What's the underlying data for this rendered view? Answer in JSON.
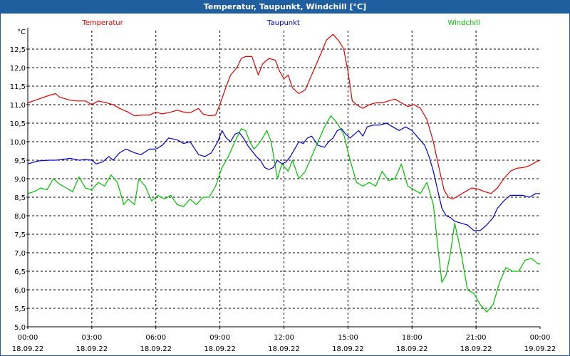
{
  "chart_data": {
    "type": "line",
    "title": "Temperatur, Taupunkt, Windchill [°C]",
    "unit_label": "°C",
    "x_start_hours": 0,
    "x_end_hours": 24,
    "x_tick_hours": [
      0,
      3,
      6,
      9,
      12,
      15,
      18,
      21,
      24
    ],
    "x_tick_times": [
      "00:00",
      "03:00",
      "06:00",
      "09:00",
      "12:00",
      "15:00",
      "18:00",
      "21:00",
      "00:00"
    ],
    "x_tick_dates": [
      "18.09.22",
      "18.09.22",
      "18.09.22",
      "18.09.22",
      "18.09.22",
      "18.09.22",
      "18.09.22",
      "18.09.22",
      "19.09.22"
    ],
    "y_min": 5.0,
    "y_max": 13.0,
    "y_ticks": [
      5.0,
      5.5,
      6.0,
      6.5,
      7.0,
      7.5,
      8.0,
      8.5,
      9.0,
      9.5,
      10.0,
      10.5,
      11.0,
      11.5,
      12.0,
      12.5
    ],
    "y_tick_labels": [
      "5,0",
      "5,5",
      "6,0",
      "6,5",
      "7,0",
      "7,5",
      "8,0",
      "8,5",
      "9,0",
      "9,5",
      "10,0",
      "10,5",
      "11,0",
      "11,5",
      "12,0",
      "12,5"
    ],
    "grid": true,
    "series": [
      {
        "name": "Temperatur",
        "color": "#e00000",
        "x": [
          0,
          0.5,
          1,
          1.3,
          1.5,
          2,
          2.3,
          2.7,
          3,
          3.3,
          3.7,
          4,
          4.3,
          4.7,
          5,
          5.3,
          5.7,
          6,
          6.3,
          6.7,
          7,
          7.3,
          7.6,
          8,
          8.2,
          8.5,
          8.8,
          9,
          9.3,
          9.5,
          9.8,
          10,
          10.2,
          10.5,
          10.8,
          11,
          11.3,
          11.6,
          11.8,
          12,
          12.2,
          12.4,
          12.7,
          13,
          13.3,
          13.6,
          14,
          14.3,
          14.6,
          14.8,
          15,
          15.2,
          15.4,
          15.7,
          16,
          16.3,
          16.6,
          16.9,
          17.2,
          17.5,
          17.8,
          18.1,
          18.4,
          18.7,
          19,
          19.3,
          19.5,
          19.7,
          19.9,
          20.2,
          20.5,
          20.8,
          21.1,
          21.4,
          21.7,
          22,
          22.3,
          22.6,
          22.9,
          23.2,
          23.5,
          23.8,
          24
        ],
        "values": [
          11.05,
          11.15,
          11.25,
          11.3,
          11.2,
          11.12,
          11.1,
          11.1,
          11.0,
          11.1,
          11.05,
          11.0,
          10.9,
          10.8,
          10.7,
          10.72,
          10.72,
          10.8,
          10.75,
          10.8,
          10.85,
          10.8,
          10.78,
          10.9,
          10.75,
          10.7,
          10.72,
          11.0,
          11.5,
          11.8,
          12.0,
          12.25,
          12.3,
          12.3,
          11.8,
          12.1,
          12.25,
          12.2,
          11.9,
          11.7,
          11.8,
          11.45,
          11.3,
          11.4,
          11.8,
          12.2,
          12.75,
          12.9,
          12.7,
          12.5,
          11.9,
          11.1,
          11.0,
          10.9,
          11.0,
          11.05,
          11.05,
          11.1,
          11.15,
          11.05,
          10.95,
          11.0,
          10.9,
          10.6,
          10.0,
          9.2,
          8.7,
          8.5,
          8.45,
          8.55,
          8.65,
          8.75,
          8.72,
          8.65,
          8.6,
          8.75,
          9.0,
          9.2,
          9.28,
          9.3,
          9.35,
          9.45,
          9.5
        ]
      },
      {
        "name": "Taupunkt",
        "color": "#0000d0",
        "x": [
          0,
          0.5,
          1,
          1.3,
          1.6,
          2,
          2.4,
          2.7,
          3,
          3.2,
          3.5,
          3.8,
          4,
          4.3,
          4.6,
          5,
          5.3,
          5.7,
          6,
          6.3,
          6.6,
          7,
          7.3,
          7.6,
          8,
          8.3,
          8.6,
          8.9,
          9.1,
          9.3,
          9.5,
          9.7,
          9.9,
          10.1,
          10.3,
          10.5,
          10.7,
          10.9,
          11.1,
          11.3,
          11.5,
          11.7,
          11.9,
          12.1,
          12.3,
          12.5,
          12.7,
          12.9,
          13.1,
          13.3,
          13.6,
          13.9,
          14.1,
          14.3,
          14.5,
          14.7,
          14.9,
          15.1,
          15.3,
          15.5,
          15.7,
          15.9,
          16.2,
          16.5,
          16.8,
          17.1,
          17.4,
          17.7,
          18,
          18.3,
          18.6,
          18.8,
          19,
          19.2,
          19.4,
          19.6,
          19.8,
          20,
          20.3,
          20.6,
          20.9,
          21.2,
          21.5,
          21.8,
          22,
          22.3,
          22.6,
          22.9,
          23.2,
          23.5,
          23.8,
          24
        ],
        "values": [
          9.4,
          9.48,
          9.5,
          9.5,
          9.52,
          9.55,
          9.5,
          9.52,
          9.5,
          9.4,
          9.45,
          9.6,
          9.5,
          9.7,
          9.8,
          9.7,
          9.65,
          9.8,
          9.8,
          9.9,
          10.1,
          10.05,
          9.95,
          10.0,
          9.65,
          9.6,
          9.7,
          10.0,
          10.3,
          10.1,
          10.0,
          10.2,
          10.25,
          10.1,
          9.9,
          9.75,
          9.6,
          9.5,
          9.3,
          9.25,
          9.3,
          9.5,
          9.4,
          9.45,
          9.6,
          9.8,
          10.0,
          9.95,
          10.1,
          10.15,
          9.9,
          9.85,
          10.0,
          10.1,
          10.3,
          10.35,
          10.2,
          10.1,
          10.2,
          10.3,
          10.15,
          10.4,
          10.45,
          10.45,
          10.5,
          10.4,
          10.3,
          10.4,
          10.3,
          10.1,
          9.9,
          9.6,
          9.2,
          8.7,
          8.2,
          8.0,
          7.95,
          7.85,
          7.8,
          7.75,
          7.6,
          7.6,
          7.75,
          7.95,
          8.2,
          8.4,
          8.55,
          8.55,
          8.55,
          8.5,
          8.6,
          8.6
        ]
      },
      {
        "name": "Windchill",
        "color": "#00c000",
        "x": [
          0,
          0.3,
          0.6,
          0.9,
          1.2,
          1.5,
          1.8,
          2.1,
          2.4,
          2.7,
          3,
          3.3,
          3.6,
          3.9,
          4.2,
          4.5,
          4.7,
          5,
          5.2,
          5.5,
          5.8,
          6.1,
          6.4,
          6.7,
          7,
          7.3,
          7.6,
          7.9,
          8.2,
          8.5,
          8.8,
          9.1,
          9.4,
          9.7,
          10,
          10.2,
          10.4,
          10.6,
          10.9,
          11.2,
          11.4,
          11.7,
          11.9,
          12.2,
          12.4,
          12.7,
          13,
          13.3,
          13.6,
          13.9,
          14.2,
          14.5,
          14.8,
          15.1,
          15.4,
          15.7,
          16,
          16.3,
          16.6,
          16.9,
          17.2,
          17.5,
          17.8,
          18.1,
          18.4,
          18.7,
          19,
          19.2,
          19.4,
          19.6,
          19.8,
          20,
          20.3,
          20.6,
          20.9,
          21.2,
          21.5,
          21.8,
          22.1,
          22.4,
          22.7,
          23,
          23.3,
          23.6,
          23.9,
          24
        ],
        "values": [
          8.6,
          8.65,
          8.75,
          8.7,
          9.0,
          8.85,
          8.75,
          8.65,
          9.05,
          8.75,
          8.7,
          8.9,
          8.8,
          9.1,
          8.9,
          8.3,
          8.45,
          8.3,
          9.0,
          8.8,
          8.4,
          8.55,
          8.45,
          8.55,
          8.3,
          8.25,
          8.45,
          8.3,
          8.5,
          8.5,
          8.8,
          9.3,
          9.6,
          10.0,
          10.35,
          10.3,
          10.0,
          9.8,
          10.0,
          10.3,
          10.0,
          9.0,
          9.4,
          9.2,
          9.5,
          9.0,
          9.2,
          9.6,
          10.0,
          10.4,
          10.7,
          10.5,
          10.2,
          9.5,
          8.9,
          8.8,
          8.9,
          8.8,
          9.2,
          8.95,
          9.0,
          9.4,
          8.8,
          8.7,
          8.6,
          8.9,
          8.3,
          7.2,
          6.2,
          6.4,
          7.0,
          7.8,
          7.0,
          6.0,
          5.9,
          5.6,
          5.4,
          5.6,
          6.2,
          6.6,
          6.5,
          6.5,
          6.8,
          6.85,
          6.7,
          6.7
        ]
      }
    ]
  }
}
